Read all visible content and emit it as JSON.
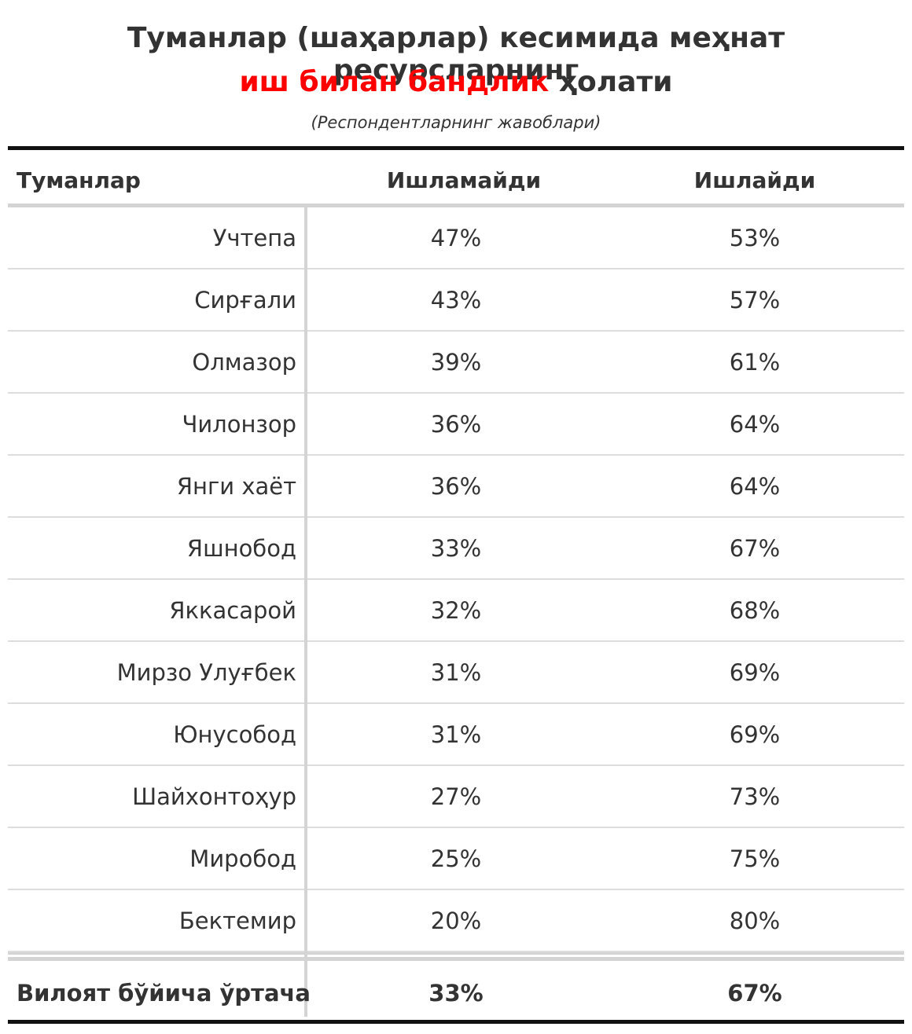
{
  "title": {
    "line1": "Туманлар (шаҳарлар) кесимида меҳнат ресурсларнинг",
    "line2_highlight": "иш билан бандлик",
    "line2_rest": "ҳолати"
  },
  "subtitle": "(Респондентларнинг жавоблари)",
  "colors": {
    "highlight": "#ff0000",
    "text": "#333333"
  },
  "table": {
    "headers": [
      "Туманлар",
      "Ишламайди",
      "Ишлайди"
    ],
    "rows": [
      {
        "district": "Учтепа",
        "not_working": "47%",
        "working": "53%"
      },
      {
        "district": "Сирғали",
        "not_working": "43%",
        "working": "57%"
      },
      {
        "district": "Олмазор",
        "not_working": "39%",
        "working": "61%"
      },
      {
        "district": "Чилонзор",
        "not_working": "36%",
        "working": "64%"
      },
      {
        "district": "Янги хаёт",
        "not_working": "36%",
        "working": "64%"
      },
      {
        "district": "Яшнобод",
        "not_working": "33%",
        "working": "67%"
      },
      {
        "district": "Яккасарой",
        "not_working": "32%",
        "working": "68%"
      },
      {
        "district": "Мирзо Улуғбек",
        "not_working": "31%",
        "working": "69%"
      },
      {
        "district": "Юнусобод",
        "not_working": "31%",
        "working": "69%"
      },
      {
        "district": "Шайхонтоҳур",
        "not_working": "27%",
        "working": "73%"
      },
      {
        "district": "Миробод",
        "not_working": "25%",
        "working": "75%"
      },
      {
        "district": "Бектемир",
        "not_working": "20%",
        "working": "80%"
      }
    ],
    "footer": {
      "label": "Вилоят бўйича ўртача",
      "not_working": "33%",
      "working": "67%"
    }
  }
}
